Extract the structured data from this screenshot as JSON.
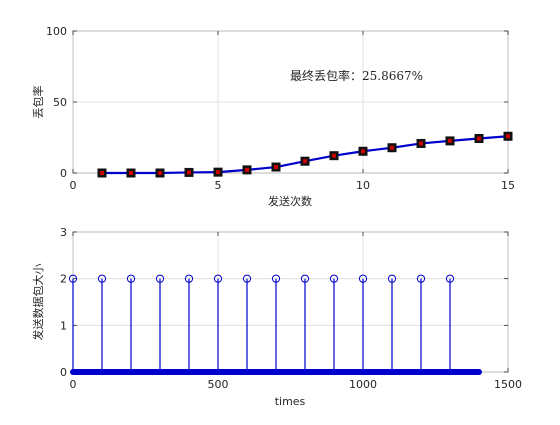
{
  "chart_data": [
    {
      "type": "line",
      "ylabel": "丢包率",
      "xlabel": "发送次数",
      "xlim": [
        0,
        15
      ],
      "ylim": [
        0,
        100
      ],
      "xticks": [
        "0",
        "5",
        "10",
        "15"
      ],
      "yticks": [
        "0",
        "50",
        "100"
      ],
      "grid": true,
      "annotation": "最终丢包率：25.8667%",
      "series": [
        {
          "line_color": "#0000cc",
          "marker": "square",
          "marker_edge_color": "#111111",
          "marker_face_color": "#cc0000",
          "x": [
            1,
            2,
            3,
            4,
            5,
            6,
            7,
            8,
            9,
            10,
            11,
            12,
            13,
            14,
            15
          ],
          "y": [
            0,
            0,
            0,
            0.4,
            0.6,
            2.2,
            4.2,
            8.3,
            12.2,
            15.3,
            17.8,
            20.8,
            22.6,
            24.3,
            25.87
          ]
        }
      ]
    },
    {
      "type": "stem",
      "ylabel": "发送数据包大小",
      "xlabel": "times",
      "xlim": [
        0,
        1500
      ],
      "ylim": [
        0,
        3
      ],
      "xticks": [
        "0",
        "500",
        "1000",
        "1500"
      ],
      "yticks": [
        "0",
        "1",
        "2",
        "3"
      ],
      "grid": true,
      "series": [
        {
          "color": "#0000cc",
          "marker": "circle",
          "baseline_value": 0,
          "baseline_x_range": [
            0,
            1400
          ],
          "x": [
            0,
            100,
            200,
            300,
            400,
            500,
            600,
            700,
            800,
            900,
            1000,
            1100,
            1200,
            1300
          ],
          "y": [
            2,
            2,
            2,
            2,
            2,
            2,
            2,
            2,
            2,
            2,
            2,
            2,
            2,
            2
          ]
        }
      ]
    }
  ]
}
